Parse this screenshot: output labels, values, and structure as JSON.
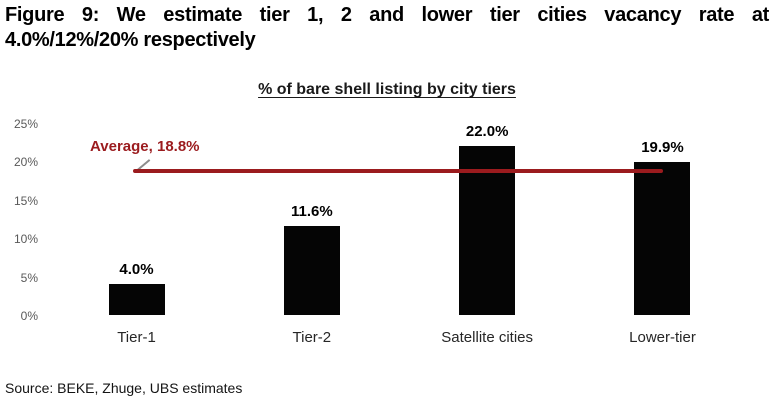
{
  "figure_title": {
    "line1": "Figure 9: We estimate tier 1, 2 and lower tier cities vacancy rate at",
    "line2": "4.0%/12%/20% respectively"
  },
  "chart_data": {
    "type": "bar",
    "title": "% of bare shell listing by city tiers",
    "categories": [
      "Tier-1",
      "Tier-2",
      "Satellite cities",
      "Lower-tier"
    ],
    "values": [
      4.0,
      11.6,
      22.0,
      19.9
    ],
    "value_labels": [
      "4.0%",
      "11.6%",
      "22.0%",
      "19.9%"
    ],
    "ylim": [
      0,
      25
    ],
    "yticks": [
      0,
      5,
      10,
      15,
      20,
      25
    ],
    "ytick_labels": [
      "0%",
      "5%",
      "10%",
      "15%",
      "20%",
      "25%"
    ],
    "grid": false,
    "legend": "none",
    "bar_color": "#050505",
    "average": {
      "label": "Average, 18.8%",
      "value": 18.8,
      "color": "#9B1B1E"
    }
  },
  "source": "Source: BEKE, Zhuge, UBS estimates"
}
